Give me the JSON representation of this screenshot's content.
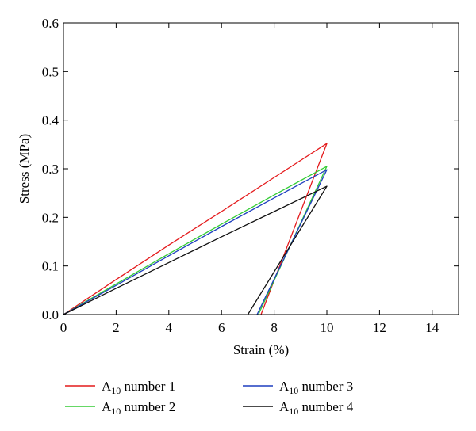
{
  "chart_data": {
    "type": "line",
    "xlabel": "Strain (%)",
    "ylabel": "Stress (MPa)",
    "xlim": [
      0,
      15
    ],
    "ylim": [
      0,
      0.6
    ],
    "xticks": [
      0,
      2,
      4,
      6,
      8,
      10,
      12,
      14
    ],
    "yticks": [
      0.0,
      0.1,
      0.2,
      0.3,
      0.4,
      0.5,
      0.6
    ],
    "xtick_labels": [
      "0",
      "2",
      "4",
      "6",
      "8",
      "10",
      "12",
      "14"
    ],
    "ytick_labels": [
      "0.0",
      "0.1",
      "0.2",
      "0.3",
      "0.4",
      "0.5",
      "0.6"
    ],
    "grid": false,
    "legend_position": "below",
    "series": [
      {
        "name": "A10 number 1",
        "legend_main": "A",
        "legend_sub": "10",
        "legend_rest": " number 1",
        "color": "#e41a1c",
        "points": [
          [
            0,
            0
          ],
          [
            2,
            0.072
          ],
          [
            4,
            0.143
          ],
          [
            6,
            0.212
          ],
          [
            8,
            0.282
          ],
          [
            10,
            0.352
          ],
          [
            7.5,
            0
          ]
        ]
      },
      {
        "name": "A10 number 2",
        "legend_main": "A",
        "legend_sub": "10",
        "legend_rest": " number 2",
        "color": "#33cc33",
        "points": [
          [
            0,
            0
          ],
          [
            2,
            0.063
          ],
          [
            4,
            0.125
          ],
          [
            6,
            0.186
          ],
          [
            8,
            0.246
          ],
          [
            10,
            0.305
          ],
          [
            7.4,
            0
          ]
        ]
      },
      {
        "name": "A10 number 3",
        "legend_main": "A",
        "legend_sub": "10",
        "legend_rest": " number 3",
        "color": "#1f3fbf",
        "points": [
          [
            0,
            0
          ],
          [
            2,
            0.06
          ],
          [
            4,
            0.121
          ],
          [
            6,
            0.181
          ],
          [
            8,
            0.24
          ],
          [
            10,
            0.298
          ],
          [
            7.35,
            0
          ]
        ]
      },
      {
        "name": "A10 number 4",
        "legend_main": "A",
        "legend_sub": "10",
        "legend_rest": " number 4",
        "color": "#111111",
        "points": [
          [
            0,
            0
          ],
          [
            2,
            0.054
          ],
          [
            4,
            0.107
          ],
          [
            6,
            0.16
          ],
          [
            8,
            0.212
          ],
          [
            10,
            0.264
          ],
          [
            7.0,
            0
          ]
        ]
      }
    ]
  }
}
